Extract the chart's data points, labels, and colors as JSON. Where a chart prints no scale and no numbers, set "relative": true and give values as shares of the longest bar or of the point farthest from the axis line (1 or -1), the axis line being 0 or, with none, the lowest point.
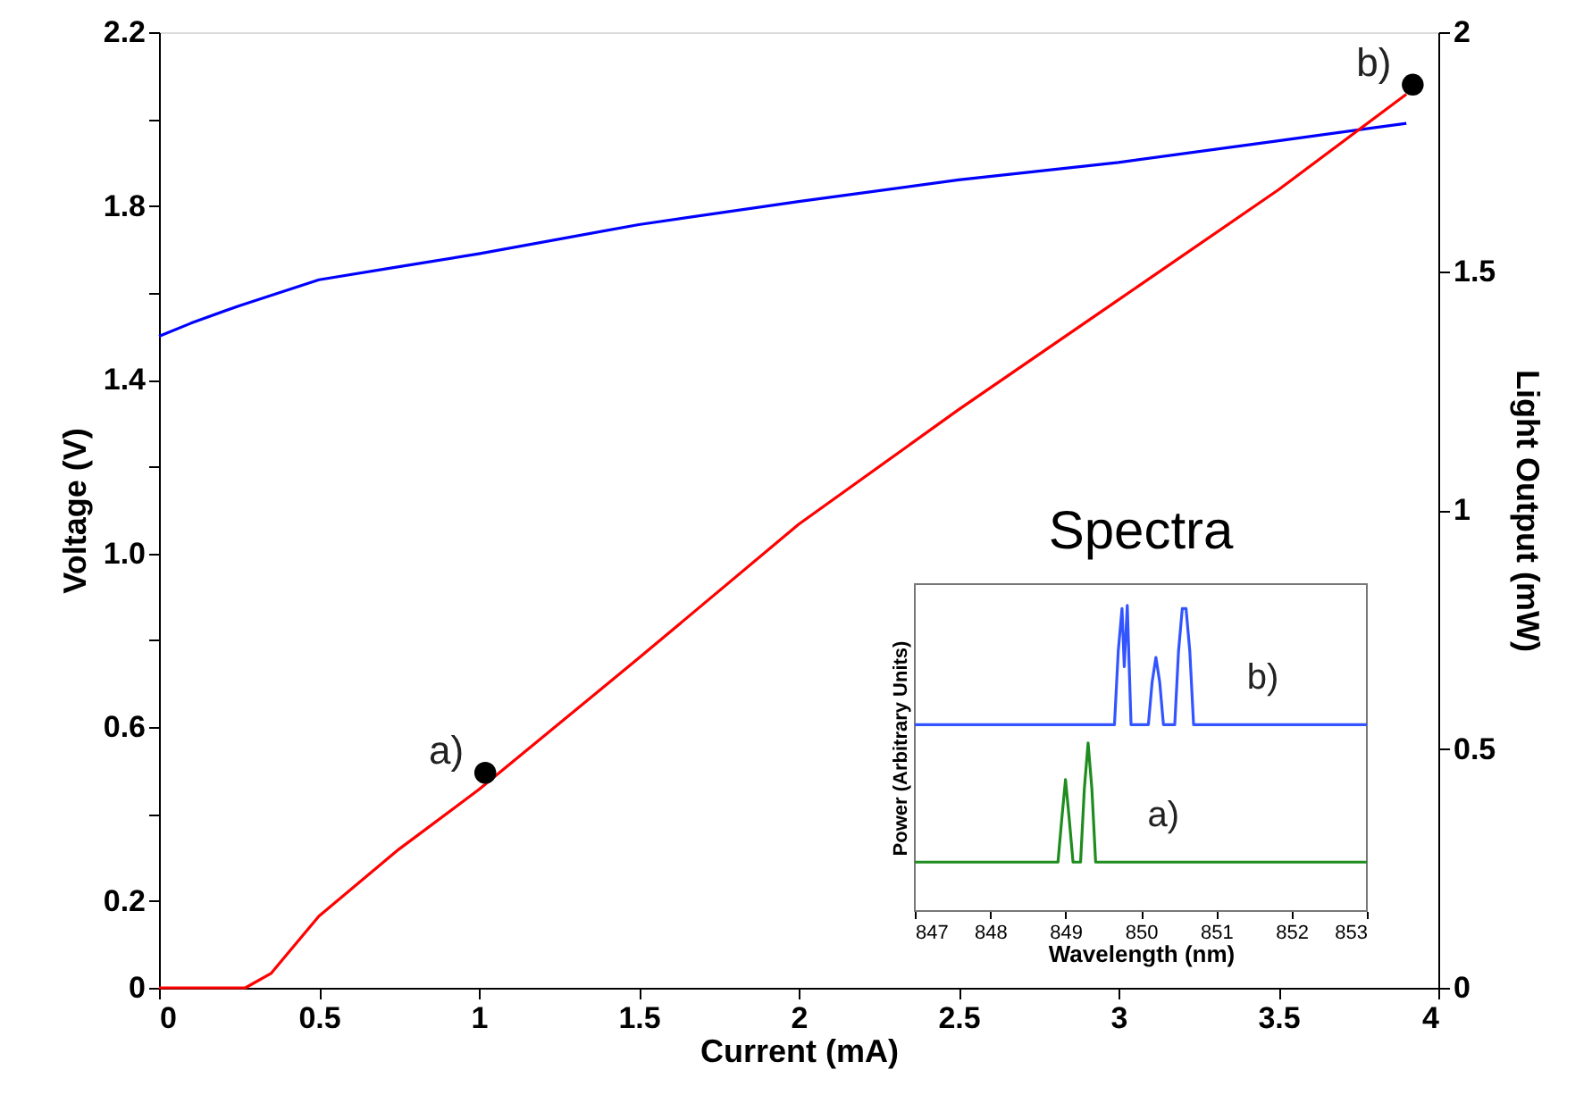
{
  "chart_data": [
    {
      "type": "line",
      "xlabel": "Current (mA)",
      "ylabel": "Voltage (V)",
      "y2label": "Light Output (mW)",
      "xlim": [
        0,
        4
      ],
      "xticks": [
        0,
        0.5,
        1,
        1.5,
        2,
        2.5,
        3,
        3.5,
        4
      ],
      "ylim": [
        0,
        2.2
      ],
      "yticks": [
        0,
        0.2,
        {
          "value": 0.4,
          "label": null
        },
        0.6,
        {
          "value": 0.8,
          "label": null
        },
        {
          "value": 1,
          "label": "1.0"
        },
        {
          "value": 1.2,
          "label": null
        },
        1.4,
        {
          "value": 1.6,
          "label": null
        },
        1.8,
        {
          "value": 2,
          "label": null
        },
        2.2
      ],
      "y2lim": [
        0,
        2
      ],
      "y2ticks": [
        0,
        0.5,
        1,
        1.5,
        2
      ],
      "grid": false,
      "series": [
        {
          "type": "line",
          "color": "#0000ff",
          "x": [
            0,
            0.1,
            0.25,
            0.5,
            0.75,
            1,
            1.5,
            2,
            2.5,
            3,
            3.5,
            3.9
          ],
          "values": [
            1.5,
            1.53,
            1.57,
            1.63,
            1.66,
            1.69,
            1.757,
            1.81,
            1.86,
            1.9,
            1.95,
            1.99
          ]
        },
        {
          "type": "line",
          "axis": "y2",
          "color": "#ff0000",
          "x": [
            0,
            0.27,
            0.35,
            0.4,
            0.5,
            0.75,
            1,
            1.5,
            2,
            2.5,
            3,
            3.5,
            3.9
          ],
          "values": [
            0,
            0,
            0.03,
            0.07,
            0.15,
            0.29,
            0.415,
            0.69,
            0.97,
            1.21,
            1.44,
            1.67,
            1.87
          ]
        },
        {
          "type": "scatter",
          "axis": "y2",
          "color": "#000000",
          "marker": "circle",
          "x": [
            1.02,
            3.92
          ],
          "values": [
            0.45,
            1.89
          ]
        }
      ],
      "annotations": [
        "a)",
        "b)"
      ]
    },
    {
      "type": "line",
      "relative": true,
      "title": "Spectra",
      "xlabel": "Wavelength (nm)",
      "ylabel": "Power (Arbitrary Units)",
      "xlim": [
        847,
        853
      ],
      "xticks": [
        847,
        848,
        849,
        850,
        851,
        852,
        853
      ],
      "tick_labels": "x",
      "grid": false,
      "series": [
        {
          "color": "#1e8c1e",
          "x": [
            847,
            848.9,
            848.95,
            849.0,
            849.05,
            849.1,
            849.2,
            849.25,
            849.3,
            849.35,
            849.4,
            853
          ],
          "values": [
            0.16,
            0.16,
            0.3,
            0.43,
            0.3,
            0.16,
            0.16,
            0.4,
            0.55,
            0.4,
            0.16,
            0.16
          ]
        },
        {
          "color": "#3355ff",
          "x": [
            847,
            849.65,
            849.7,
            849.75,
            849.78,
            849.82,
            849.87,
            849.95,
            850.1,
            850.15,
            850.2,
            850.25,
            850.3,
            850.45,
            850.5,
            850.55,
            850.6,
            850.65,
            850.7,
            853
          ],
          "values": [
            0.61,
            0.61,
            0.85,
            0.99,
            0.8,
            1.0,
            0.61,
            0.61,
            0.61,
            0.75,
            0.83,
            0.75,
            0.61,
            0.61,
            0.85,
            0.99,
            0.99,
            0.85,
            0.61,
            0.61
          ]
        }
      ],
      "annotations": [
        "a)",
        "b)"
      ]
    }
  ]
}
